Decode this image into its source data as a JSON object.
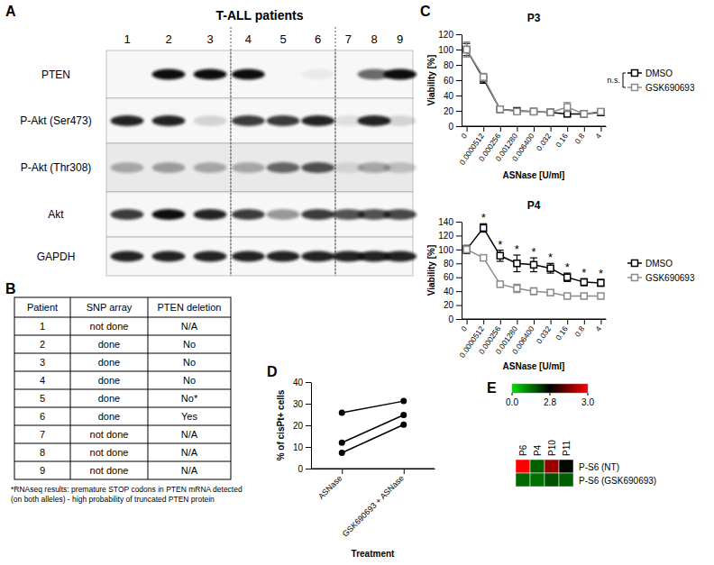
{
  "panel_labels": [
    "A",
    "B",
    "C",
    "D",
    "E"
  ],
  "blot": {
    "title": "T-ALL patients",
    "lanes": [
      "1",
      "2",
      "3",
      "4",
      "5",
      "6",
      "7",
      "8",
      "9"
    ],
    "rows": [
      {
        "label": "PTEN",
        "band_intensity": [
          0,
          1,
          1,
          1,
          0,
          0.05,
          0,
          0.6,
          1
        ]
      },
      {
        "label": "P-Akt (Ser473)",
        "band_intensity": [
          0.9,
          0.9,
          0.15,
          0.8,
          0.8,
          0.9,
          0.1,
          0.9,
          0.15
        ]
      },
      {
        "label": "P-Akt (Thr308)",
        "band_intensity": [
          0.3,
          0.35,
          0.3,
          0.3,
          0.6,
          0.7,
          0.1,
          0.3,
          0.2
        ]
      },
      {
        "label": "Akt",
        "band_intensity": [
          0.8,
          1,
          0.9,
          0.8,
          0.4,
          0.8,
          0.7,
          0.7,
          0.75
        ]
      },
      {
        "label": "GAPDH",
        "band_intensity": [
          0.9,
          0.9,
          0.9,
          0.9,
          0.9,
          0.9,
          0.9,
          0.9,
          0.9
        ]
      }
    ]
  },
  "table": {
    "columns": [
      "Patient",
      "SNP array",
      "PTEN deletion"
    ],
    "rows": [
      [
        "1",
        "not done",
        "N/A"
      ],
      [
        "2",
        "done",
        "No"
      ],
      [
        "3",
        "done",
        "No"
      ],
      [
        "4",
        "done",
        "No"
      ],
      [
        "5",
        "done",
        "No*"
      ],
      [
        "6",
        "done",
        "Yes"
      ],
      [
        "7",
        "not done",
        "N/A"
      ],
      [
        "8",
        "not done",
        "N/A"
      ],
      [
        "9",
        "not done",
        "N/A"
      ]
    ],
    "footnote": [
      "*RNAseq results: premature STOP codons in PTEN mRNA detected",
      "(on both alleles) - high probability of truncated PTEN protein"
    ]
  },
  "chart_data": [
    {
      "type": "line",
      "title": "P3",
      "xlabel": "ASNase [U/ml]",
      "ylabel": "Viability [%]",
      "categories": [
        "0",
        "0.0000512",
        "0.000256",
        "0.001280",
        "0.006400",
        "0.032",
        "0.16",
        "0.8",
        "4"
      ],
      "ylim": [
        0,
        120
      ],
      "yticks": [
        0,
        20,
        40,
        60,
        80,
        100,
        120
      ],
      "grid": false,
      "legend": "right",
      "series": [
        {
          "name": "DMSO",
          "color": "#000000",
          "marker": "square",
          "values": [
            100,
            62,
            22,
            20,
            19,
            18,
            16,
            16,
            18
          ],
          "errors": [
            8,
            6,
            3,
            2,
            2,
            3,
            3,
            3,
            4
          ]
        },
        {
          "name": "GSK690693",
          "color": "#8c8c8c",
          "marker": "square",
          "values": [
            100,
            64,
            22,
            19,
            19,
            18,
            25,
            16,
            19
          ],
          "errors": [
            10,
            5,
            3,
            2,
            2,
            2,
            6,
            3,
            2
          ]
        }
      ],
      "annotations": [
        {
          "text": "n.s."
        }
      ]
    },
    {
      "type": "line",
      "title": "P4",
      "xlabel": "ASNase [U/ml]",
      "ylabel": "Viability [%]",
      "categories": [
        "0",
        "0.0000512",
        "0.000256",
        "0.001280",
        "0.006400",
        "0.032",
        "0.16",
        "0.8",
        "4"
      ],
      "ylim": [
        0,
        140
      ],
      "yticks": [
        0,
        20,
        40,
        60,
        80,
        100,
        120,
        140
      ],
      "grid": false,
      "legend": "right",
      "series": [
        {
          "name": "DMSO",
          "color": "#000000",
          "marker": "square",
          "values": [
            100,
            131,
            91,
            80,
            78,
            73,
            60,
            53,
            52
          ],
          "errors": [
            6,
            6,
            8,
            12,
            10,
            7,
            6,
            5,
            5
          ]
        },
        {
          "name": "GSK690693",
          "color": "#8c8c8c",
          "marker": "square",
          "values": [
            100,
            88,
            50,
            44,
            40,
            38,
            33,
            33,
            33
          ],
          "errors": [
            5,
            3,
            4,
            6,
            5,
            4,
            4,
            4,
            4
          ]
        }
      ],
      "annotations": [
        {
          "index": 1,
          "text": "*"
        },
        {
          "index": 2,
          "text": "*"
        },
        {
          "index": 3,
          "text": "*"
        },
        {
          "index": 4,
          "text": "*"
        },
        {
          "index": 5,
          "text": "*"
        },
        {
          "index": 6,
          "text": "*"
        },
        {
          "index": 7,
          "text": "*"
        },
        {
          "index": 8,
          "text": "*"
        }
      ]
    },
    {
      "type": "line",
      "xlabel": "Treatment",
      "ylabel": "% of cisPt+ cells",
      "categories": [
        "ASNase",
        "GSK690693 + ASNase"
      ],
      "ylim": [
        0,
        40
      ],
      "yticks": [
        0,
        10,
        20,
        30,
        40
      ],
      "grid": false,
      "series": [
        {
          "color": "#000000",
          "marker": "circle",
          "values": [
            25.8,
            31.2
          ]
        },
        {
          "color": "#000000",
          "marker": "circle",
          "values": [
            12,
            24.8
          ]
        },
        {
          "color": "#000000",
          "marker": "circle",
          "values": [
            7.3,
            20.3
          ]
        }
      ]
    },
    {
      "type": "heatmap",
      "x": [
        "P6",
        "P4",
        "P10",
        "P11"
      ],
      "y": [
        "P-S6 (NT)",
        "P-S6 (GSK690693)"
      ],
      "values": [
        [
          3.0,
          1.6,
          2.92,
          2.7
        ],
        [
          1.5,
          1.4,
          1.8,
          1.6
        ]
      ],
      "colorbar": {
        "range": [
          0,
          3
        ],
        "ticks": [
          {
            "value": 0,
            "label": "0.0"
          },
          2.8,
          {
            "value": 3,
            "label": "3.0"
          }
        ],
        "colors": [
          "#00e000",
          "#000000",
          "#ff0000"
        ]
      }
    }
  ]
}
